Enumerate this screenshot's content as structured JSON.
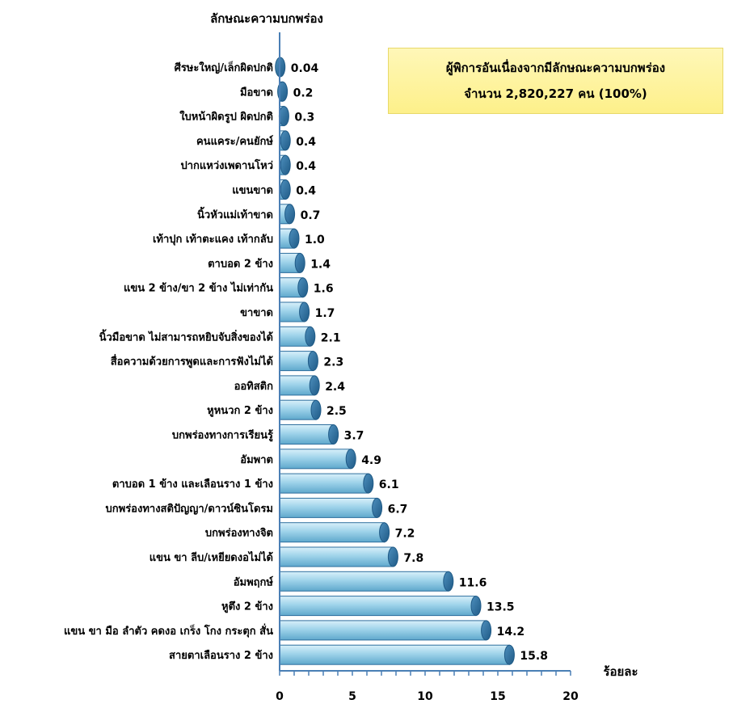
{
  "chart_data": {
    "type": "bar",
    "orientation": "horizontal",
    "ylabel": "ลักษณะความบกพร่อง",
    "xlabel": "ร้อยละ",
    "xlim": [
      0,
      20
    ],
    "xticks": [
      "0",
      "5",
      "10",
      "15",
      "20"
    ],
    "categories": [
      "ศีรษะใหญ่/เล็กผิดปกติ",
      "มือขาด",
      "ใบหน้าผิดรูป ผิดปกติ",
      "คนแคระ/คนยักษ์",
      "ปากแหว่งเพดานโหว่",
      "แขนขาด",
      "นิ้วหัวแม่เท้าขาด",
      "เท้าปุก เท้าตะแคง เท้ากลับ",
      "ตาบอด 2 ข้าง",
      "แขน 2 ข้าง/ขา 2 ข้าง ไม่เท่ากัน",
      "ขาขาด",
      "นิ้วมือขาด ไม่สามารถหยิบจับสิ่งของได้",
      "สื่อความด้วยการพูดและการฟังไม่ได้",
      "ออทิสติก",
      "หูหนวก 2 ข้าง",
      "บกพร่องทางการเรียนรู้",
      "อัมพาต",
      "ตาบอด 1 ข้าง และเลือนราง 1 ข้าง",
      "บกพร่องทางสติปัญญา/ดาวน์ซินโดรม",
      "บกพร่องทางจิต",
      "แขน ขา ลีบ/เหยียดงอไม่ได้",
      "อัมพฤกษ์",
      "หูตึง 2 ข้าง",
      "แขน ขา มือ ลำตัว คดงอ เกร็ง โกง กระตุก สั่น",
      "สายตาเลือนราง 2 ข้าง"
    ],
    "values": [
      0.04,
      0.2,
      0.3,
      0.4,
      0.4,
      0.4,
      0.7,
      1.0,
      1.4,
      1.6,
      1.7,
      2.1,
      2.3,
      2.4,
      2.5,
      3.7,
      4.9,
      6.1,
      6.7,
      7.2,
      7.8,
      11.6,
      13.5,
      14.2,
      15.8
    ],
    "value_labels": [
      "0.04",
      "0.2",
      "0.3",
      "0.4",
      "0.4",
      "0.4",
      "0.7",
      "1.0",
      "1.4",
      "1.6",
      "1.7",
      "2.1",
      "2.3",
      "2.4",
      "2.5",
      "3.7",
      "4.9",
      "6.1",
      "6.7",
      "7.2",
      "7.8",
      "11.6",
      "13.5",
      "14.2",
      "15.8"
    ],
    "bar_color": "#9fd3ea",
    "bar_edge_color": "#2e6f9e",
    "grid": false
  },
  "info_box": {
    "line1": "ผู้พิการอันเนื่องจากมีลักษณะความบกพร่อง",
    "line2": "จำนวน 2,820,227 คน (100%)",
    "background": "#fdf08a"
  }
}
